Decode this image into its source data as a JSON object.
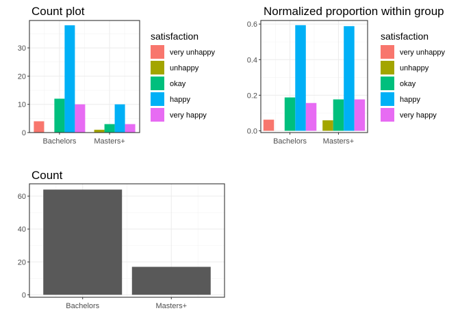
{
  "chart_data": [
    {
      "type": "bar",
      "title": "Count plot",
      "categories": [
        "Bachelors",
        "Masters+"
      ],
      "series": [
        {
          "name": "very unhappy",
          "values": [
            4,
            0
          ],
          "color": "#F8766D"
        },
        {
          "name": "unhappy",
          "values": [
            0,
            1
          ],
          "color": "#A3A500"
        },
        {
          "name": "okay",
          "values": [
            12,
            3
          ],
          "color": "#00BF7D"
        },
        {
          "name": "happy",
          "values": [
            38,
            10
          ],
          "color": "#00B0F6"
        },
        {
          "name": "very happy",
          "values": [
            10,
            3
          ],
          "color": "#E76BF3"
        }
      ],
      "yticks": [
        "0",
        "10",
        "20",
        "30"
      ],
      "ylim": [
        0,
        39.7
      ],
      "legend_title": "satisfaction",
      "legend_position": "right",
      "grid": true
    },
    {
      "type": "bar",
      "title": "Normalized proportion within group",
      "categories": [
        "Bachelors",
        "Masters+"
      ],
      "series": [
        {
          "name": "very unhappy",
          "values": [
            0.0625,
            0
          ],
          "color": "#F8766D"
        },
        {
          "name": "unhappy",
          "values": [
            0,
            0.0588
          ],
          "color": "#A3A500"
        },
        {
          "name": "okay",
          "values": [
            0.1875,
            0.1765
          ],
          "color": "#00BF7D"
        },
        {
          "name": "happy",
          "values": [
            0.59375,
            0.5882
          ],
          "color": "#00B0F6"
        },
        {
          "name": "very happy",
          "values": [
            0.15625,
            0.1765
          ],
          "color": "#E76BF3"
        }
      ],
      "yticks": [
        "0.0",
        "0.2",
        "0.4",
        "0.6"
      ],
      "ylim": [
        -0.01,
        0.62
      ],
      "legend_title": "satisfaction",
      "legend_position": "right",
      "grid": true
    },
    {
      "type": "bar",
      "title": "Count",
      "categories": [
        "Bachelors",
        "Masters+"
      ],
      "values": [
        64,
        17
      ],
      "bar_color": "#595959",
      "yticks": [
        "0",
        "20",
        "40",
        "60"
      ],
      "ylim": [
        -1.5,
        67.5
      ],
      "grid": true
    }
  ]
}
